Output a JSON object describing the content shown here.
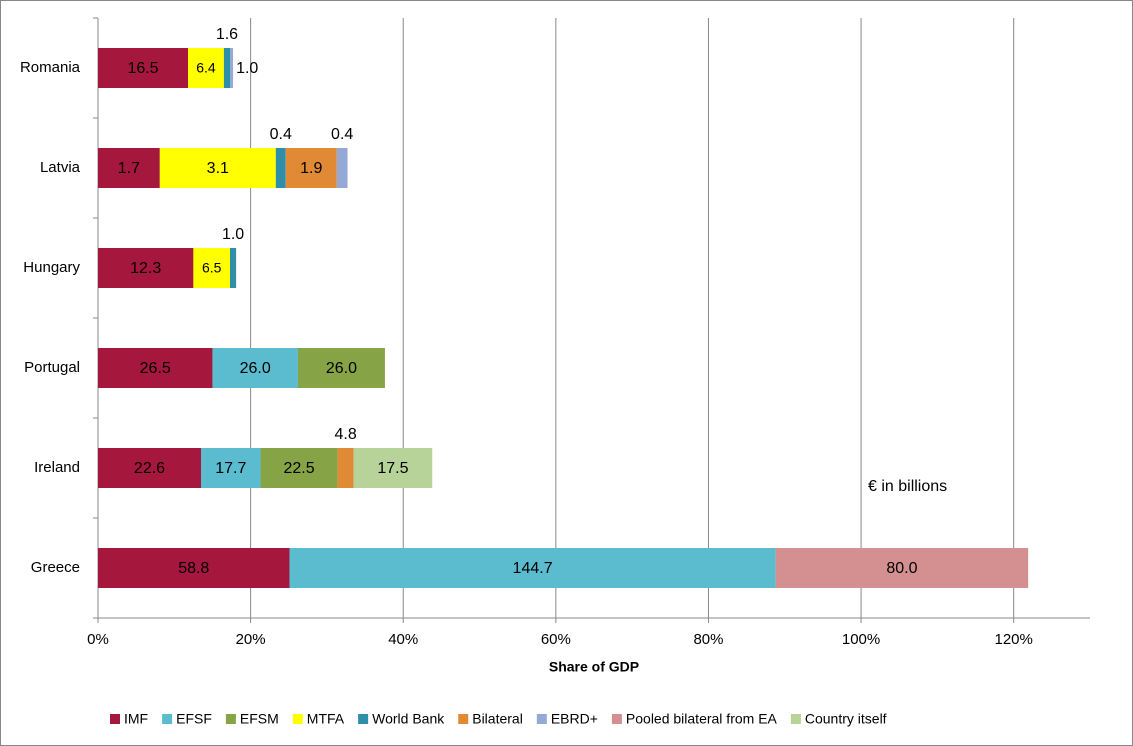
{
  "chart_data": {
    "type": "stacked-bar-horizontal",
    "categories": [
      "Romania",
      "Latvia",
      "Hungary",
      "Portugal",
      "Ireland",
      "Greece"
    ],
    "series": [
      {
        "name": "IMF",
        "color": "#a6173d",
        "values": [
          11.8,
          8.1,
          12.5,
          15.0,
          13.5,
          25.1
        ],
        "amounts": [
          16.5,
          1.7,
          12.3,
          26.5,
          22.6,
          58.8
        ]
      },
      {
        "name": "EFSF",
        "color": "#5bbccf",
        "values": [
          null,
          null,
          null,
          11.2,
          7.8,
          63.7
        ],
        "amounts": [
          null,
          null,
          null,
          26.0,
          17.7,
          144.7
        ]
      },
      {
        "name": "EFSM",
        "color": "#86a346",
        "values": [
          null,
          null,
          null,
          11.4,
          10.1,
          null
        ],
        "amounts": [
          null,
          null,
          null,
          26.0,
          22.5,
          null
        ]
      },
      {
        "name": "MTFA",
        "color": "#ffff00",
        "values": [
          4.7,
          15.2,
          4.8,
          null,
          null,
          null
        ],
        "amounts": [
          6.4,
          3.1,
          6.5,
          null,
          null,
          null
        ]
      },
      {
        "name": "World Bank",
        "color": "#2f8fa8",
        "values": [
          0.8,
          1.3,
          0.8,
          null,
          null,
          null
        ],
        "amounts": [
          1.6,
          0.4,
          1.0,
          null,
          null,
          null
        ]
      },
      {
        "name": "Bilateral",
        "color": "#e08a35",
        "values": [
          null,
          6.7,
          null,
          null,
          2.1,
          null
        ],
        "amounts": [
          null,
          1.9,
          null,
          null,
          4.8,
          null
        ]
      },
      {
        "name": "EBRD+",
        "color": "#94a9d6",
        "values": [
          0.4,
          1.4,
          null,
          null,
          null,
          null
        ],
        "amounts": [
          1.0,
          0.4,
          null,
          null,
          null,
          null
        ]
      },
      {
        "name": "Pooled bilateral from EA",
        "color": "#d49090",
        "values": [
          null,
          null,
          null,
          null,
          null,
          33.1
        ],
        "amounts": [
          null,
          null,
          null,
          null,
          null,
          80.0
        ]
      },
      {
        "name": "Country itself",
        "color": "#b8d39a",
        "values": [
          null,
          null,
          null,
          null,
          10.3,
          null
        ],
        "amounts": [
          null,
          null,
          null,
          null,
          17.5,
          null
        ]
      }
    ],
    "xlabel": "Share of GDP",
    "annotation": "€ in billions",
    "xlim": [
      0,
      130
    ],
    "xticks": [
      {
        "value": 0,
        "label": "0%"
      },
      {
        "value": 20,
        "label": "20%"
      },
      {
        "value": 40,
        "label": "40%"
      },
      {
        "value": 60,
        "label": "60%"
      },
      {
        "value": 80,
        "label": "80%"
      },
      {
        "value": 100,
        "label": "100%"
      },
      {
        "value": 120,
        "label": "120%"
      }
    ],
    "grid": true,
    "legend": "bottom"
  }
}
